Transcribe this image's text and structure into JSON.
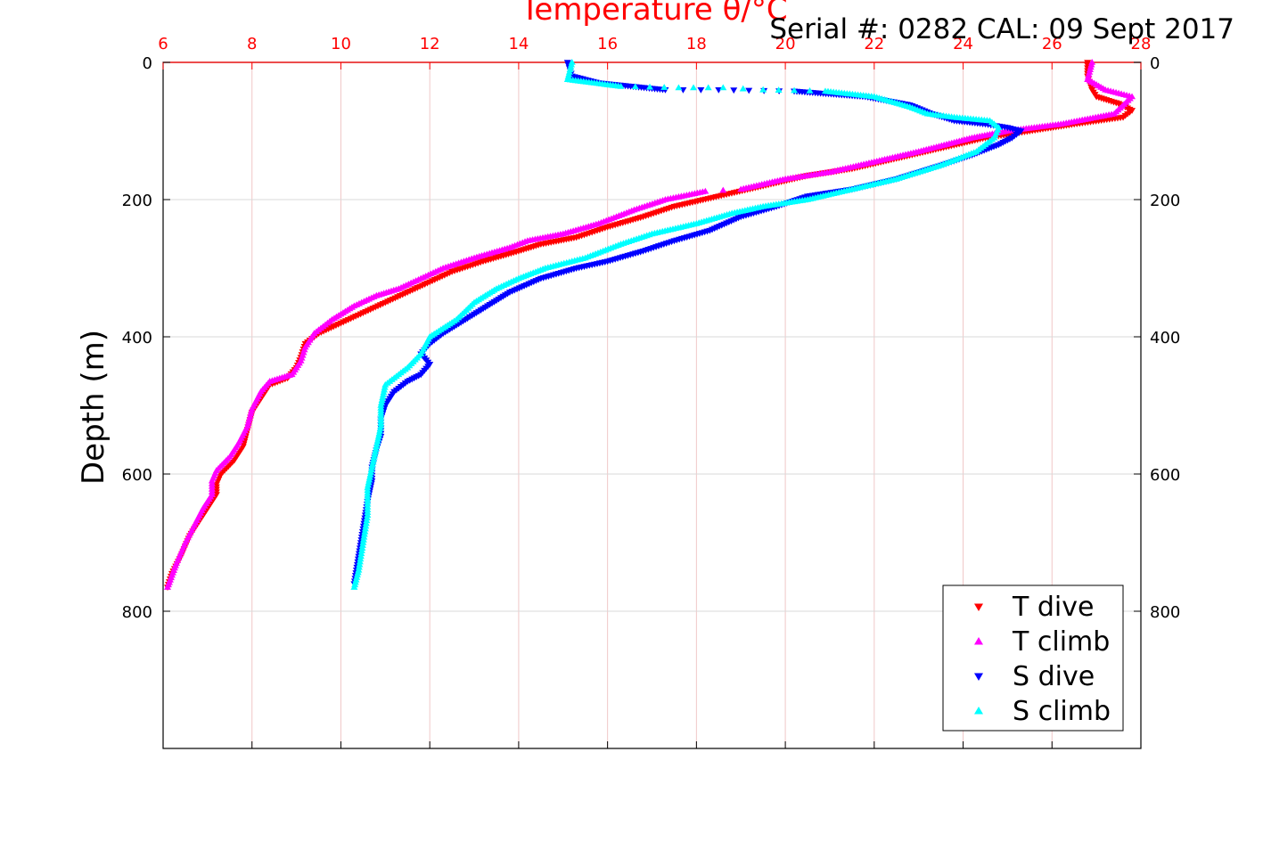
{
  "chart_data": {
    "type": "scatter",
    "title": "Temperature θ/°C",
    "annotation": "Serial #: 0282  CAL: 09 Sept 2017",
    "ylabel": "Depth (m)",
    "xlabel": "",
    "xlim": [
      6,
      28
    ],
    "ylim": [
      0,
      1000
    ],
    "y_reversed": true,
    "x_ticks": [
      "6",
      "8",
      "10",
      "12",
      "14",
      "16",
      "18",
      "20",
      "22",
      "24",
      "26",
      "28"
    ],
    "y_ticks": [
      "0",
      "200",
      "400",
      "600",
      "800"
    ],
    "grid": true,
    "legend_position": "bottom-right",
    "colors": {
      "t_dive": "#ff0000",
      "t_climb": "#ff00ff",
      "s_dive": "#0000ff",
      "s_climb": "#00ffff",
      "top_axis": "#ff0000",
      "grid": "#f0c8c8"
    },
    "series": [
      {
        "name": "T dive",
        "marker": "triangle-down",
        "x": [
          26.8,
          26.8,
          26.9,
          27.0,
          27.5,
          27.8,
          27.6,
          26.5,
          25.5,
          24.5,
          23.5,
          22.5,
          21.5,
          20.5,
          19.5,
          18.5,
          17.5,
          16.8,
          16.0,
          15.3,
          14.5,
          14.0,
          13.2,
          12.5,
          12.0,
          11.5,
          11.0,
          10.5,
          10.0,
          9.5,
          9.2,
          9.1,
          9.0,
          8.8,
          8.4,
          8.2,
          8.0,
          7.9,
          7.8,
          7.6,
          7.3,
          7.2,
          7.2,
          7.0,
          6.8,
          6.6,
          6.4,
          6.2,
          6.1
        ],
        "y": [
          0,
          20,
          40,
          50,
          60,
          70,
          80,
          90,
          100,
          110,
          125,
          140,
          155,
          165,
          180,
          195,
          210,
          225,
          240,
          255,
          265,
          275,
          290,
          305,
          320,
          335,
          350,
          365,
          380,
          395,
          410,
          430,
          445,
          460,
          470,
          490,
          510,
          535,
          560,
          580,
          600,
          615,
          630,
          650,
          670,
          690,
          720,
          745,
          765
        ]
      },
      {
        "name": "T climb",
        "marker": "triangle-up",
        "x": [
          26.9,
          26.8,
          27.2,
          27.8,
          27.4,
          26.2,
          25.0,
          24.2,
          23.0,
          22.0,
          21.0,
          20.0,
          19.0,
          18.2,
          17.3,
          16.6,
          15.8,
          15.0,
          14.2,
          13.8,
          13.0,
          12.3,
          11.8,
          11.3,
          10.8,
          10.3,
          9.8,
          9.4,
          9.2,
          9.1,
          8.9,
          8.4,
          8.2,
          8.0,
          7.9,
          7.7,
          7.5,
          7.2,
          7.1,
          7.1,
          6.9,
          6.7,
          6.5,
          6.3,
          6.1
        ],
        "y": [
          0,
          25,
          40,
          50,
          75,
          90,
          100,
          110,
          130,
          145,
          160,
          170,
          185,
          188,
          200,
          215,
          235,
          250,
          260,
          270,
          285,
          300,
          315,
          330,
          340,
          355,
          375,
          395,
          415,
          435,
          455,
          465,
          480,
          505,
          530,
          555,
          575,
          595,
          610,
          630,
          650,
          675,
          700,
          730,
          765
        ]
      },
      {
        "name": "S dive",
        "marker": "triangle-down",
        "x": [
          15.1,
          15.2,
          15.8,
          17.3,
          18.5,
          20.2,
          21.8,
          22.8,
          23.3,
          23.8,
          24.5,
          25.0,
          25.3,
          25.1,
          24.8,
          24.2,
          23.5,
          22.5,
          21.5,
          20.5,
          19.8,
          19.0,
          18.3,
          17.5,
          16.8,
          16.0,
          15.3,
          14.5,
          13.8,
          13.3,
          12.8,
          12.3,
          12.0,
          11.8,
          12.0,
          11.8,
          11.5,
          11.2,
          11.0,
          10.9,
          10.9,
          10.8,
          10.7,
          10.7,
          10.6,
          10.5,
          10.4,
          10.3
        ],
        "y": [
          0,
          20,
          30,
          40,
          40,
          42,
          50,
          62,
          75,
          85,
          90,
          95,
          100,
          110,
          120,
          135,
          150,
          170,
          185,
          195,
          210,
          225,
          245,
          260,
          275,
          290,
          300,
          315,
          335,
          355,
          375,
          395,
          410,
          425,
          440,
          455,
          465,
          480,
          500,
          520,
          545,
          565,
          590,
          610,
          640,
          680,
          720,
          760
        ]
      },
      {
        "name": "S climb",
        "marker": "triangle-up",
        "x": [
          15.2,
          15.1,
          16.3,
          17.6,
          18.6,
          19.5,
          20.9,
          22.0,
          22.8,
          23.2,
          23.8,
          24.6,
          24.8,
          24.7,
          24.3,
          23.5,
          22.5,
          21.5,
          20.5,
          19.5,
          18.8,
          18.0,
          17.0,
          16.3,
          15.5,
          14.6,
          14.0,
          13.5,
          13.0,
          12.6,
          12.0,
          11.8,
          11.5,
          11.0,
          10.9,
          10.9,
          10.8,
          10.7,
          10.6,
          10.6,
          10.5,
          10.4,
          10.3
        ],
        "y": [
          0,
          25,
          35,
          37,
          37,
          40,
          42,
          50,
          65,
          75,
          80,
          85,
          95,
          110,
          130,
          150,
          170,
          185,
          200,
          210,
          220,
          235,
          250,
          265,
          285,
          300,
          315,
          330,
          350,
          375,
          400,
          425,
          445,
          470,
          500,
          530,
          560,
          590,
          620,
          660,
          700,
          740,
          765
        ]
      }
    ]
  }
}
